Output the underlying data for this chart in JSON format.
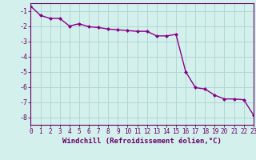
{
  "x": [
    0,
    1,
    2,
    3,
    4,
    5,
    6,
    7,
    8,
    9,
    10,
    11,
    12,
    13,
    14,
    15,
    16,
    17,
    18,
    19,
    20,
    21,
    22,
    23
  ],
  "y": [
    -0.7,
    -1.3,
    -1.5,
    -1.5,
    -2.0,
    -1.85,
    -2.05,
    -2.1,
    -2.2,
    -2.25,
    -2.3,
    -2.35,
    -2.35,
    -2.65,
    -2.65,
    -2.55,
    -5.0,
    -6.05,
    -6.15,
    -6.55,
    -6.8,
    -6.8,
    -6.85,
    -7.85
  ],
  "line_color": "#880088",
  "marker": "D",
  "marker_size": 2.0,
  "bg_color": "#d4f0ec",
  "grid_color": "#b0d8d4",
  "xlim": [
    0,
    23
  ],
  "ylim": [
    -8.5,
    -0.5
  ],
  "yticks": [
    -1,
    -2,
    -3,
    -4,
    -5,
    -6,
    -7,
    -8
  ],
  "xticks": [
    0,
    1,
    2,
    3,
    4,
    5,
    6,
    7,
    8,
    9,
    10,
    11,
    12,
    13,
    14,
    15,
    16,
    17,
    18,
    19,
    20,
    21,
    22,
    23
  ],
  "xtick_labels": [
    "0",
    "1",
    "2",
    "3",
    "4",
    "5",
    "6",
    "7",
    "8",
    "9",
    "10",
    "11",
    "12",
    "13",
    "14",
    "15",
    "16",
    "17",
    "18",
    "19",
    "20",
    "21",
    "22",
    "23"
  ],
  "xlabel": "Windchill (Refroidissement éolien,°C)",
  "xlabel_color": "#660066",
  "tick_color": "#660066",
  "axis_color": "#660066",
  "label_fontsize": 6.5,
  "tick_fontsize": 5.5,
  "line_width": 1.0
}
